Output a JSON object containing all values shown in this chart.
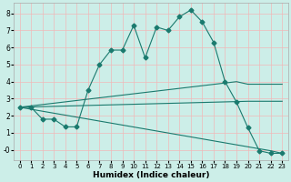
{
  "xlabel": "Humidex (Indice chaleur)",
  "bg_color": "#cceee8",
  "grid_color": "#f0b8b8",
  "line_color": "#1a7a6e",
  "xlim": [
    -0.5,
    23.5
  ],
  "ylim": [
    -0.6,
    8.6
  ],
  "xticks": [
    0,
    1,
    2,
    3,
    4,
    5,
    6,
    7,
    8,
    9,
    10,
    11,
    12,
    13,
    14,
    15,
    16,
    17,
    18,
    19,
    20,
    21,
    22,
    23
  ],
  "yticks": [
    0,
    1,
    2,
    3,
    4,
    5,
    6,
    7,
    8
  ],
  "lines": [
    {
      "x": [
        0,
        1,
        2,
        3,
        4,
        5,
        6,
        7,
        8,
        9,
        10,
        11,
        12,
        13,
        14,
        15,
        16,
        17,
        18,
        19,
        20,
        21,
        22,
        23
      ],
      "y": [
        2.5,
        2.5,
        1.8,
        1.8,
        1.35,
        1.35,
        3.5,
        5.0,
        5.85,
        5.85,
        7.3,
        5.4,
        7.2,
        7.0,
        7.8,
        8.2,
        7.5,
        6.3,
        4.0,
        2.8,
        1.3,
        -0.05,
        -0.2,
        -0.2
      ],
      "marker": "D",
      "marker_size": 2.5
    },
    {
      "x": [
        0,
        19,
        20,
        22,
        23
      ],
      "y": [
        2.5,
        4.0,
        3.85,
        3.85,
        3.85
      ],
      "marker": null,
      "marker_size": 0
    },
    {
      "x": [
        0,
        20,
        22,
        23
      ],
      "y": [
        2.5,
        2.85,
        2.85,
        2.85
      ],
      "marker": null,
      "marker_size": 0
    },
    {
      "x": [
        0,
        22,
        23
      ],
      "y": [
        2.5,
        -0.05,
        -0.2
      ],
      "marker": null,
      "marker_size": 0
    }
  ]
}
